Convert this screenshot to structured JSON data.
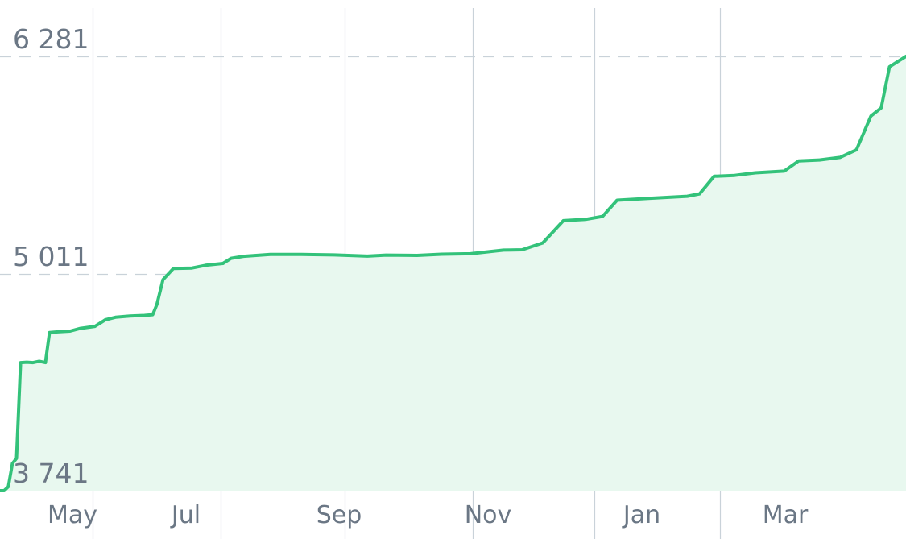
{
  "chart_data": {
    "type": "area",
    "title": "",
    "xlabel": "",
    "ylabel": "",
    "x_ticks": [
      "May",
      "Jul",
      "Sep",
      "Nov",
      "Jan",
      "Mar"
    ],
    "y_ticks": [
      "6 281",
      "5 011",
      "3 741"
    ],
    "y_tick_values": [
      6281,
      5011,
      3741
    ],
    "ylim": [
      3741,
      6281
    ],
    "grid": {
      "horizontal_dashed": true,
      "vertical_month_lines": true
    },
    "colors": {
      "line": "#33c27a",
      "fill": "#e8f8ef",
      "grid": "#c9d2d9",
      "text": "#6b7785"
    },
    "series": [
      {
        "points": [
          [
            "2023-04-01",
            3741
          ],
          [
            "2023-04-03",
            3741
          ],
          [
            "2023-04-05",
            3764
          ],
          [
            "2023-04-07",
            3900
          ],
          [
            "2023-04-09",
            3930
          ],
          [
            "2023-04-11",
            4490
          ],
          [
            "2023-04-14",
            4492
          ],
          [
            "2023-04-17",
            4490
          ],
          [
            "2023-04-20",
            4498
          ],
          [
            "2023-04-23",
            4490
          ],
          [
            "2023-04-25",
            4666
          ],
          [
            "2023-04-29",
            4670
          ],
          [
            "2023-05-05",
            4674
          ],
          [
            "2023-05-10",
            4690
          ],
          [
            "2023-05-17",
            4702
          ],
          [
            "2023-05-22",
            4740
          ],
          [
            "2023-05-27",
            4755
          ],
          [
            "2023-06-03",
            4762
          ],
          [
            "2023-06-10",
            4766
          ],
          [
            "2023-06-14",
            4770
          ],
          [
            "2023-06-16",
            4830
          ],
          [
            "2023-06-19",
            4975
          ],
          [
            "2023-06-24",
            5040
          ],
          [
            "2023-07-03",
            5043
          ],
          [
            "2023-07-10",
            5060
          ],
          [
            "2023-07-18",
            5070
          ],
          [
            "2023-07-22",
            5100
          ],
          [
            "2023-07-28",
            5112
          ],
          [
            "2023-08-10",
            5123
          ],
          [
            "2023-08-25",
            5123
          ],
          [
            "2023-09-10",
            5120
          ],
          [
            "2023-09-26",
            5113
          ],
          [
            "2023-10-05",
            5119
          ],
          [
            "2023-10-20",
            5117
          ],
          [
            "2023-11-01",
            5124
          ],
          [
            "2023-11-15",
            5127
          ],
          [
            "2023-12-01",
            5148
          ],
          [
            "2023-12-10",
            5150
          ],
          [
            "2023-12-20",
            5190
          ],
          [
            "2023-12-30",
            5320
          ],
          [
            "2024-01-10",
            5328
          ],
          [
            "2024-01-18",
            5345
          ],
          [
            "2024-01-25",
            5440
          ],
          [
            "2024-02-10",
            5451
          ],
          [
            "2024-02-28",
            5463
          ],
          [
            "2024-03-05",
            5477
          ],
          [
            "2024-03-12",
            5580
          ],
          [
            "2024-03-22",
            5585
          ],
          [
            "2024-04-01",
            5600
          ],
          [
            "2024-04-15",
            5610
          ],
          [
            "2024-04-22",
            5670
          ],
          [
            "2024-05-02",
            5675
          ],
          [
            "2024-05-12",
            5690
          ],
          [
            "2024-05-20",
            5735
          ],
          [
            "2024-05-27",
            5932
          ],
          [
            "2024-06-01",
            5980
          ],
          [
            "2024-06-05",
            6220
          ],
          [
            "2024-06-13",
            6281
          ]
        ]
      }
    ]
  }
}
